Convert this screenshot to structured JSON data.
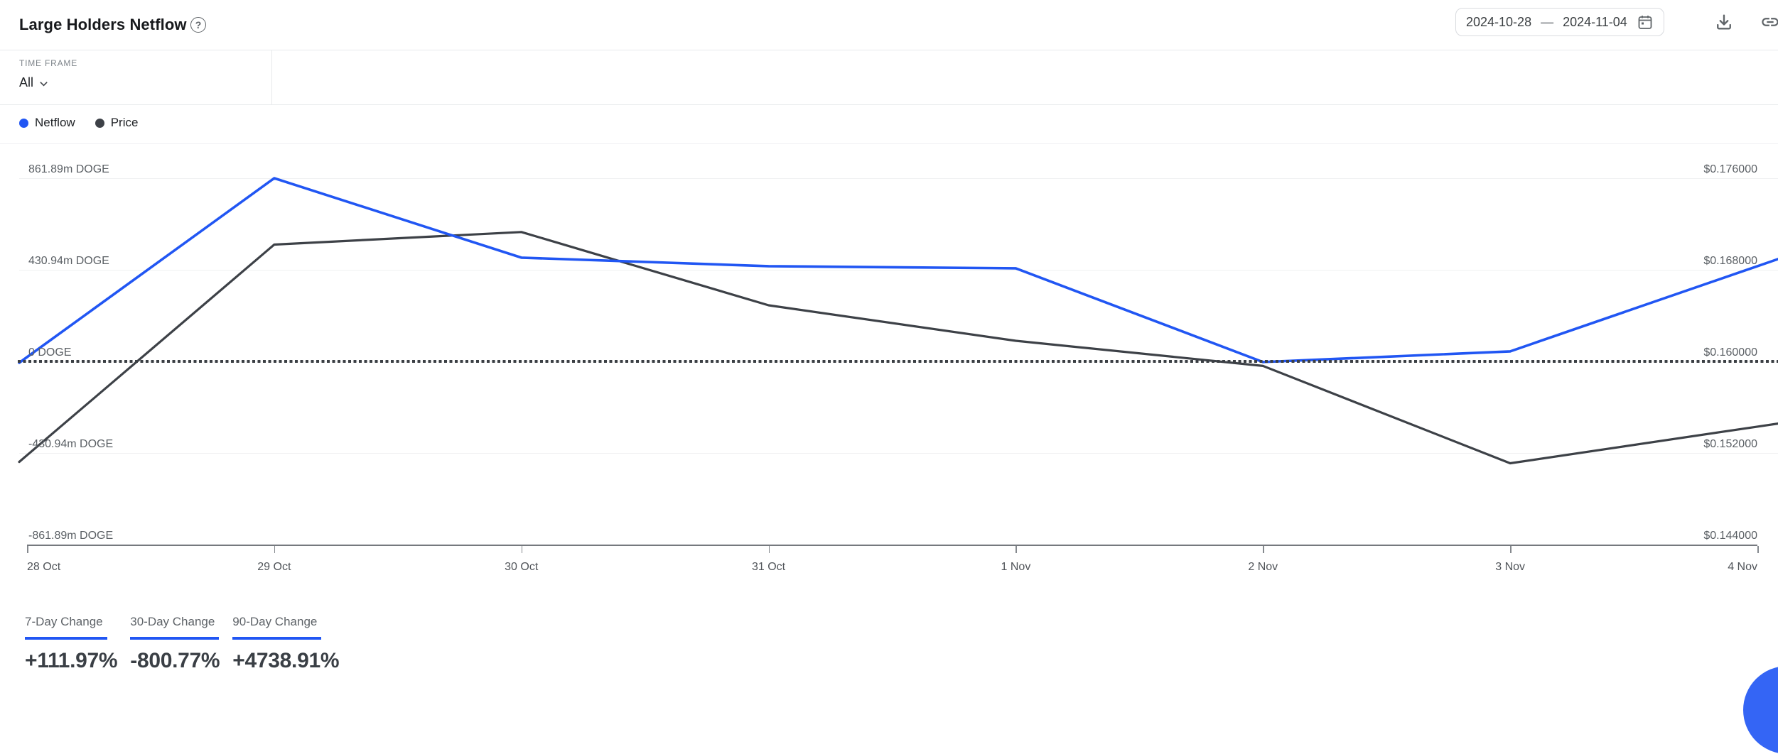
{
  "header": {
    "title": "Large Holders Netflow",
    "help_glyph": "?",
    "date_start": "2024-10-28",
    "date_separator": "—",
    "date_end": "2024-11-04"
  },
  "filters": {
    "time_frame_label": "TIME FRAME",
    "time_frame_value": "All"
  },
  "legend": [
    {
      "label": "Netflow",
      "color": "#2156f3"
    },
    {
      "label": "Price",
      "color": "#3d4147"
    }
  ],
  "chart_data": {
    "type": "line",
    "title": "Large Holders Netflow",
    "x": [
      "28 Oct",
      "29 Oct",
      "30 Oct",
      "31 Oct",
      "1 Nov",
      "2 Nov",
      "3 Nov",
      "4 Nov"
    ],
    "series": [
      {
        "name": "Netflow",
        "axis": "left",
        "unit": "million DOGE",
        "color": "#2156f3",
        "values": [
          20,
          861.89,
          488,
          448,
          438,
          -3,
          47,
          448
        ]
      },
      {
        "name": "Price",
        "axis": "right",
        "unit": "USD",
        "color": "#3d4147",
        "values": [
          0.1518,
          0.1702,
          0.1713,
          0.1649,
          0.1618,
          0.1596,
          0.1511,
          0.1543
        ]
      }
    ],
    "left_axis": {
      "ticks": [
        "861.89m DOGE",
        "430.94m DOGE",
        "0 DOGE",
        "-430.94m DOGE",
        "-861.89m DOGE"
      ],
      "range_millions": [
        -861.89,
        861.89
      ]
    },
    "right_axis": {
      "ticks": [
        "$0.176000",
        "$0.168000",
        "$0.160000",
        "$0.152000",
        "$0.144000"
      ],
      "range": [
        0.144,
        0.176
      ]
    },
    "zero_line": "dotted",
    "grid": true,
    "legend_position": "top-left"
  },
  "stats": [
    {
      "label": "7-Day Change",
      "value": "+111.97%"
    },
    {
      "label": "30-Day Change",
      "value": "-800.77%"
    },
    {
      "label": "90-Day Change",
      "value": "+4738.91%"
    }
  ],
  "colors": {
    "accent": "#2156f3",
    "price_line": "#3d4147",
    "fab": "#3465f5",
    "grid": "#f0f1f2",
    "axis_text": "#5a5f64",
    "title_text": "#17191c"
  }
}
